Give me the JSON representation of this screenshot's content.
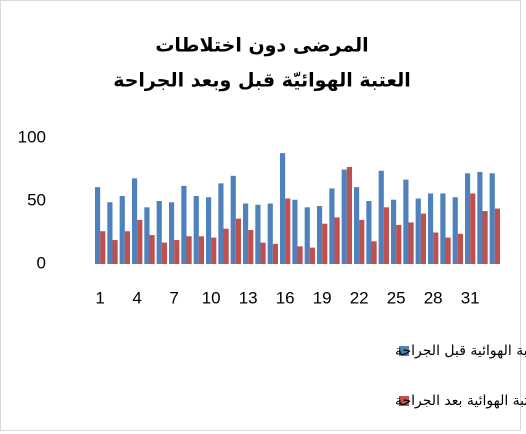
{
  "chart_data": {
    "type": "bar",
    "title": "المرضى دون اختلاطات",
    "subtitle": "العتبة الهوائيّة قبل وبعد الجراحة",
    "categories": [
      "1",
      null,
      null,
      "4",
      null,
      null,
      "7",
      null,
      null,
      "10",
      null,
      null,
      "13",
      null,
      null,
      "16",
      null,
      null,
      "19",
      null,
      null,
      "22",
      null,
      null,
      "25",
      null,
      null,
      "28",
      null,
      null,
      "31",
      null,
      null
    ],
    "series": [
      {
        "name": "العتبة الهوائية قبل الجراحة",
        "color": "#4f81bd",
        "values": [
          61,
          49,
          54,
          68,
          45,
          50,
          49,
          62,
          54,
          53,
          64,
          70,
          48,
          47,
          48,
          88,
          51,
          45,
          46,
          60,
          75,
          61,
          50,
          74,
          51,
          67,
          52,
          56,
          56,
          53,
          72,
          73,
          72
        ]
      },
      {
        "name": "العتبة الهوائية بعد الجراحة",
        "color": "#c0504d",
        "values": [
          26,
          19,
          26,
          35,
          23,
          17,
          19,
          22,
          22,
          21,
          28,
          36,
          27,
          17,
          16,
          52,
          14,
          13,
          32,
          37,
          77,
          35,
          18,
          45,
          31,
          33,
          40,
          25,
          21,
          24,
          56,
          42,
          44
        ]
      }
    ],
    "ylim": [
      0,
      100
    ],
    "yticks": [
      0,
      50,
      100
    ],
    "grid": false,
    "legend": "bottom"
  }
}
